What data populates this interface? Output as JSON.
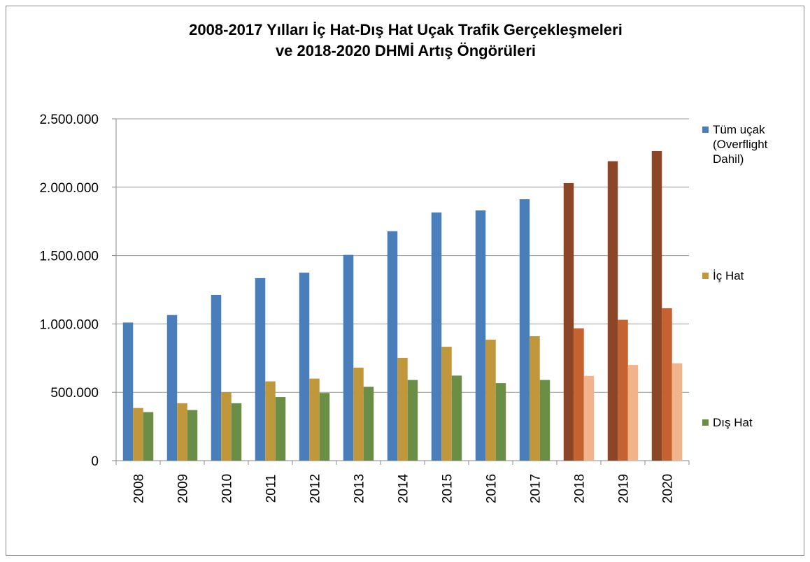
{
  "chart_data": {
    "type": "bar",
    "title": [
      "2008-2017 Yılları İç Hat-Dış Hat  Uçak Trafik Gerçekleşmeleri",
      "ve 2018-2020 DHMİ Artış Öngörüleri"
    ],
    "categories": [
      "2008",
      "2009",
      "2010",
      "2011",
      "2012",
      "2013",
      "2014",
      "2015",
      "2016",
      "2017",
      "2018",
      "2019",
      "2020"
    ],
    "series": [
      {
        "name": "Tüm uçak (Overflight Dahil)",
        "color": "#4a7ebb",
        "colors": [
          "#4a7ebb",
          "#4a7ebb",
          "#4a7ebb",
          "#4a7ebb",
          "#4a7ebb",
          "#4a7ebb",
          "#4a7ebb",
          "#4a7ebb",
          "#4a7ebb",
          "#4a7ebb",
          "#8b4628",
          "#8b4628",
          "#8b4628"
        ],
        "values": [
          1010000,
          1065000,
          1212000,
          1335000,
          1375000,
          1505000,
          1678000,
          1815000,
          1830000,
          1912000,
          2030000,
          2190000,
          2265000
        ]
      },
      {
        "name": "İç Hat",
        "color": "#c0983b",
        "colors": [
          "#c0983b",
          "#c0983b",
          "#c0983b",
          "#c0983b",
          "#c0983b",
          "#c0983b",
          "#c0983b",
          "#c0983b",
          "#c0983b",
          "#c0983b",
          "#c5622f",
          "#c5622f",
          "#c5622f"
        ],
        "values": [
          385000,
          420000,
          500000,
          580000,
          600000,
          680000,
          752000,
          833000,
          885000,
          910000,
          968000,
          1030000,
          1115000
        ]
      },
      {
        "name": "Dış Hat",
        "color": "#6b8e46",
        "colors": [
          "#6b8e46",
          "#6b8e46",
          "#6b8e46",
          "#6b8e46",
          "#6b8e46",
          "#6b8e46",
          "#6b8e46",
          "#6b8e46",
          "#6b8e46",
          "#6b8e46",
          "#f0b38a",
          "#f0b38a",
          "#f0b38a"
        ],
        "values": [
          355000,
          370000,
          420000,
          465000,
          495000,
          540000,
          590000,
          622000,
          567000,
          590000,
          620000,
          700000,
          712000
        ]
      }
    ],
    "ylim": [
      0,
      2500000
    ],
    "yticks": [
      0,
      {
        "value": 500000,
        "label": "500.000"
      },
      {
        "value": 1000000,
        "label": "1.000.000"
      },
      {
        "value": 1500000,
        "label": "1.500.000"
      },
      {
        "value": 2000000,
        "label": "2.000.000"
      },
      {
        "value": 2500000,
        "label": "2.500.000"
      }
    ],
    "grid": true,
    "legend": "right"
  }
}
